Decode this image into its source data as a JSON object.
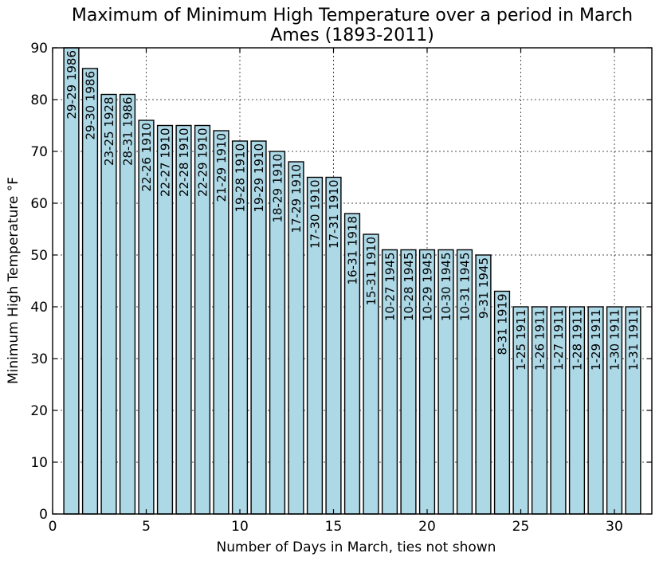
{
  "chart_data": {
    "type": "bar",
    "title_line1": "Maximum of Minimum High Temperature over a period in March",
    "title_line2": "Ames (1893-2011)",
    "xlabel": "Number of Days in March, ties not shown",
    "ylabel": "Minimum High Temperature °F",
    "xlim": [
      0,
      32
    ],
    "ylim": [
      0,
      90
    ],
    "xticks": [
      0,
      5,
      10,
      15,
      20,
      25,
      30
    ],
    "yticks": [
      0,
      10,
      20,
      30,
      40,
      50,
      60,
      70,
      80,
      90
    ],
    "grid": true,
    "bar_color": "#add8e6",
    "x": [
      1,
      2,
      3,
      4,
      5,
      6,
      7,
      8,
      9,
      10,
      11,
      12,
      13,
      14,
      15,
      16,
      17,
      18,
      19,
      20,
      21,
      22,
      23,
      24,
      25,
      26,
      27,
      28,
      29,
      30,
      31
    ],
    "values": [
      90,
      86,
      81,
      81,
      76,
      75,
      75,
      75,
      74,
      72,
      72,
      70,
      68,
      65,
      65,
      58,
      54,
      51,
      51,
      51,
      51,
      51,
      50,
      43,
      40,
      40,
      40,
      40,
      40,
      40,
      40
    ],
    "labels": [
      "29-29 1986",
      "29-30 1986",
      "23-25 1928",
      "28-31 1986",
      "22-26 1910",
      "22-27 1910",
      "22-28 1910",
      "22-29 1910",
      "21-29 1910",
      "19-28 1910",
      "19-29 1910",
      "18-29 1910",
      "17-29 1910",
      "17-30 1910",
      "17-31 1910",
      "16-31 1918",
      "15-31 1910",
      "10-27 1945",
      "10-28 1945",
      "10-29 1945",
      "10-30 1945",
      "10-31 1945",
      "9-31 1945",
      "8-31 1919",
      "1-25 1911",
      "1-26 1911",
      "1-27 1911",
      "1-28 1911",
      "1-29 1911",
      "1-30 1911",
      "1-31 1911"
    ]
  }
}
